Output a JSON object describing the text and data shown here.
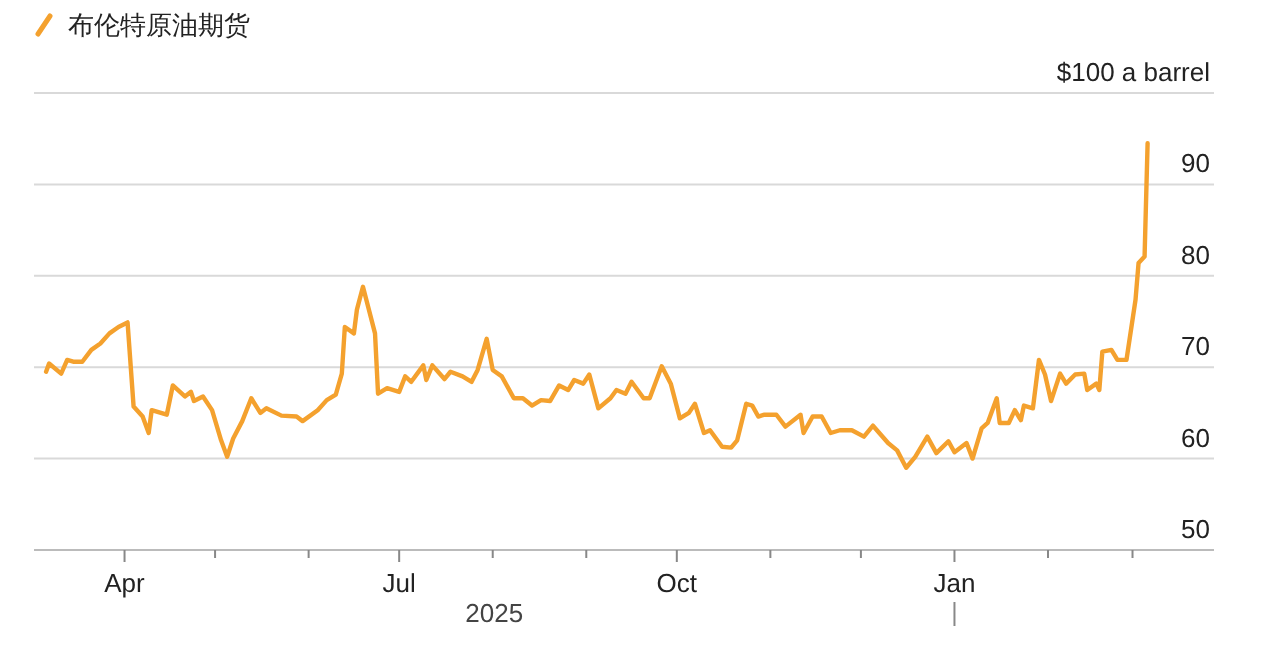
{
  "chart_data": {
    "type": "line",
    "x": [
      "2025-03-06",
      "2025-03-07",
      "2025-03-11",
      "2025-03-13",
      "2025-03-15",
      "2025-03-18",
      "2025-03-21",
      "2025-03-24",
      "2025-03-27",
      "2025-03-30",
      "2025-04-02",
      "2025-04-04",
      "2025-04-07",
      "2025-04-09",
      "2025-04-10",
      "2025-04-15",
      "2025-04-17",
      "2025-04-21",
      "2025-04-23",
      "2025-04-24",
      "2025-04-27",
      "2025-04-30",
      "2025-05-03",
      "2025-05-05",
      "2025-05-07",
      "2025-05-10",
      "2025-05-13",
      "2025-05-16",
      "2025-05-18",
      "2025-05-23",
      "2025-05-28",
      "2025-05-30",
      "2025-06-04",
      "2025-06-07",
      "2025-06-10",
      "2025-06-12",
      "2025-06-13",
      "2025-06-16",
      "2025-06-17",
      "2025-06-19",
      "2025-06-23",
      "2025-06-24",
      "2025-06-27",
      "2025-07-01",
      "2025-07-03",
      "2025-07-05",
      "2025-07-09",
      "2025-07-10",
      "2025-07-12",
      "2025-07-16",
      "2025-07-18",
      "2025-07-22",
      "2025-07-25",
      "2025-07-27",
      "2025-07-30",
      "2025-08-01",
      "2025-08-04",
      "2025-08-08",
      "2025-08-11",
      "2025-08-14",
      "2025-08-17",
      "2025-08-20",
      "2025-08-23",
      "2025-08-26",
      "2025-08-28",
      "2025-08-31",
      "2025-09-02",
      "2025-09-05",
      "2025-09-09",
      "2025-09-11",
      "2025-09-14",
      "2025-09-16",
      "2025-09-20",
      "2025-09-22",
      "2025-09-26",
      "2025-09-29",
      "2025-10-02",
      "2025-10-05",
      "2025-10-07",
      "2025-10-10",
      "2025-10-12",
      "2025-10-16",
      "2025-10-19",
      "2025-10-21",
      "2025-10-24",
      "2025-10-26",
      "2025-10-28",
      "2025-10-30",
      "2025-11-03",
      "2025-11-06",
      "2025-11-11",
      "2025-11-12",
      "2025-11-15",
      "2025-11-18",
      "2025-11-21",
      "2025-11-24",
      "2025-11-28",
      "2025-12-02",
      "2025-12-05",
      "2025-12-10",
      "2025-12-13",
      "2025-12-16",
      "2025-12-19",
      "2025-12-23",
      "2025-12-26",
      "2025-12-30",
      "2026-01-01",
      "2026-01-05",
      "2026-01-07",
      "2026-01-10",
      "2026-01-12",
      "2026-01-15",
      "2026-01-16",
      "2026-01-19",
      "2026-01-21",
      "2026-01-23",
      "2026-01-24",
      "2026-01-27",
      "2026-01-29",
      "2026-01-31",
      "2026-02-02",
      "2026-02-05",
      "2026-02-07",
      "2026-02-10",
      "2026-02-13",
      "2026-02-14",
      "2026-02-17",
      "2026-02-18",
      "2026-02-19",
      "2026-02-22",
      "2026-02-24",
      "2026-02-27",
      "2026-03-02",
      "2026-03-03",
      "2026-03-05",
      "2026-03-06"
    ],
    "series": [
      {
        "name": "布伦特原油期货",
        "color": "#f4a12e",
        "values": [
          69.5,
          70.4,
          69.3,
          70.8,
          70.6,
          70.6,
          71.9,
          72.6,
          73.7,
          74.4,
          74.9,
          65.7,
          64.6,
          62.8,
          65.3,
          64.8,
          68.0,
          66.8,
          67.3,
          66.3,
          66.8,
          65.3,
          62.0,
          60.2,
          62.2,
          64.1,
          66.6,
          65.0,
          65.5,
          64.7,
          64.6,
          64.1,
          65.3,
          66.4,
          67.0,
          69.3,
          74.4,
          73.7,
          76.3,
          78.8,
          73.7,
          67.1,
          67.7,
          67.3,
          69.0,
          68.4,
          70.2,
          68.6,
          70.2,
          68.7,
          69.5,
          69.0,
          68.4,
          69.7,
          73.1,
          69.7,
          69.0,
          66.6,
          66.6,
          65.8,
          66.4,
          66.3,
          68.0,
          67.5,
          68.6,
          68.2,
          69.2,
          65.5,
          66.6,
          67.5,
          67.1,
          68.4,
          66.6,
          66.6,
          70.1,
          68.2,
          64.4,
          65.0,
          66.0,
          62.8,
          63.1,
          61.3,
          61.2,
          62.0,
          66.0,
          65.8,
          64.6,
          64.8,
          64.8,
          63.5,
          64.8,
          62.8,
          64.6,
          64.6,
          62.8,
          63.1,
          63.1,
          62.4,
          63.6,
          61.7,
          60.9,
          59.0,
          60.2,
          62.4,
          60.6,
          61.9,
          60.7,
          61.7,
          60.0,
          63.3,
          63.9,
          66.6,
          63.9,
          63.9,
          65.3,
          64.2,
          65.8,
          65.5,
          70.8,
          69.2,
          66.3,
          69.3,
          68.2,
          69.2,
          69.3,
          67.5,
          68.2,
          67.5,
          71.7,
          71.9,
          70.8,
          70.8,
          77.4,
          81.4,
          82.1,
          94.5
        ]
      }
    ],
    "xlim": [
      "2025-03-02",
      "2026-03-28"
    ],
    "xticks": [
      {
        "value": "2025-04-01",
        "label": "Apr"
      },
      {
        "value": "2025-05-01",
        "label": null
      },
      {
        "value": "2025-06-01",
        "label": null
      },
      {
        "value": "2025-07-01",
        "label": "Jul"
      },
      {
        "value": "2025-08-01",
        "label": null
      },
      {
        "value": "2025-09-01",
        "label": null
      },
      {
        "value": "2025-10-01",
        "label": "Oct"
      },
      {
        "value": "2025-11-01",
        "label": null
      },
      {
        "value": "2025-12-01",
        "label": null
      },
      {
        "value": "2026-01-01",
        "label": "Jan"
      },
      {
        "value": "2026-02-01",
        "label": null
      },
      {
        "value": "2026-03-01",
        "label": null
      }
    ],
    "ylim": [
      50,
      100
    ],
    "yticks": [
      50,
      60,
      70,
      80,
      90,
      {
        "value": 100,
        "label": "$100 a barrel"
      }
    ],
    "annotations": [
      "2025"
    ],
    "grid": "y",
    "legend": "top left",
    "marker": "none",
    "line_style": "solid"
  }
}
